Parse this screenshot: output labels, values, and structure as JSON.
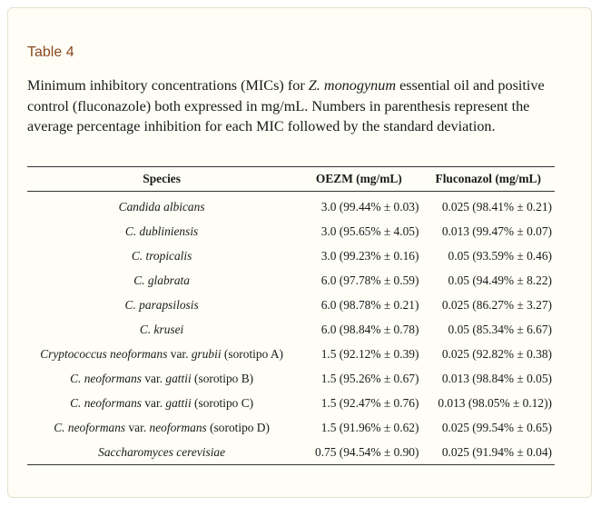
{
  "table_label": "Table 4",
  "caption": {
    "part1": "Minimum inhibitory concentrations (MICs) for ",
    "species_italic": "Z. monogynum",
    "part2": " essential oil and positive control (fluconazole) both expressed in mg/mL. Numbers in parenthesis represent the average percentage inhibition for each MIC followed by the standard deviation."
  },
  "table": {
    "headers": [
      "Species",
      "OEZM (mg/mL)",
      "Fluconazol (mg/mL)"
    ],
    "rows": [
      {
        "sp_italic": "Candida albicans",
        "sp_mid": "",
        "sp_italic2": "",
        "sp_tail": "",
        "oezm": "3.0 (99.44% ± 0.03)",
        "flu": "0.025 (98.41% ± 0.21)"
      },
      {
        "sp_italic": "C. dubliniensis",
        "sp_mid": "",
        "sp_italic2": "",
        "sp_tail": "",
        "oezm": "3.0 (95.65% ± 4.05)",
        "flu": "0.013 (99.47% ± 0.07)"
      },
      {
        "sp_italic": "C. tropicalis",
        "sp_mid": "",
        "sp_italic2": "",
        "sp_tail": "",
        "oezm": "3.0 (99.23% ± 0.16)",
        "flu": "0.05 (93.59% ± 0.46)"
      },
      {
        "sp_italic": "C. glabrata",
        "sp_mid": "",
        "sp_italic2": "",
        "sp_tail": "",
        "oezm": "6.0 (97.78% ± 0.59)",
        "flu": "0.05 (94.49% ± 8.22)"
      },
      {
        "sp_italic": "C. parapsilosis",
        "sp_mid": "",
        "sp_italic2": "",
        "sp_tail": "",
        "oezm": "6.0 (98.78% ± 0.21)",
        "flu": "0.025 (86.27% ± 3.27)"
      },
      {
        "sp_italic": "C. krusei",
        "sp_mid": "",
        "sp_italic2": "",
        "sp_tail": "",
        "oezm": "6.0 (98.84% ± 0.78)",
        "flu": "0.05 (85.34% ± 6.67)"
      },
      {
        "sp_italic": "Cryptococcus neoformans",
        "sp_mid": " var. ",
        "sp_italic2": "grubii",
        "sp_tail": " (sorotipo A)",
        "oezm": "1.5 (92.12% ± 0.39)",
        "flu": "0.025 (92.82% ± 0.38)"
      },
      {
        "sp_italic": "C. neoformans",
        "sp_mid": " var. ",
        "sp_italic2": "gattii",
        "sp_tail": " (sorotipo B)",
        "oezm": "1.5 (95.26% ± 0.67)",
        "flu": "0.013 (98.84% ± 0.05)"
      },
      {
        "sp_italic": "C. neoformans",
        "sp_mid": " var. ",
        "sp_italic2": "gattii",
        "sp_tail": " (sorotipo C)",
        "oezm": "1.5 (92.47% ± 0.76)",
        "flu": "0.013 (98.05% ± 0.12))"
      },
      {
        "sp_italic": "C. neoformans",
        "sp_mid": " var. ",
        "sp_italic2": "neoformans",
        "sp_tail": " (sorotipo D)",
        "oezm": "1.5 (91.96% ± 0.62)",
        "flu": "0.025 (99.54% ± 0.65)"
      },
      {
        "sp_italic": "Saccharomyces cerevisiae",
        "sp_mid": "",
        "sp_italic2": "",
        "sp_tail": "",
        "oezm": "0.75 (94.54% ± 0.90)",
        "flu": "0.025 (91.94% ± 0.04)"
      }
    ]
  }
}
